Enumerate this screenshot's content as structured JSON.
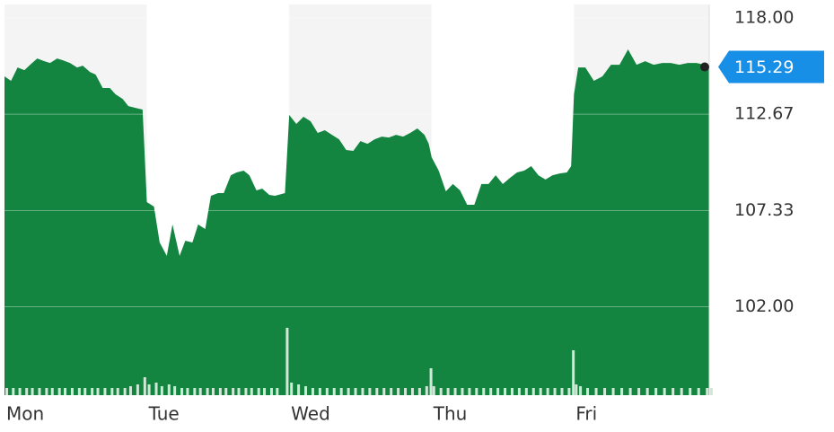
{
  "chart_data": {
    "type": "area",
    "color": "#148540",
    "volume_color": "#cfe9d6",
    "x": [
      0,
      0.046,
      0.092,
      0.14,
      0.18,
      0.23,
      0.28,
      0.32,
      0.37,
      0.41,
      0.46,
      0.51,
      0.55,
      0.6,
      0.64,
      0.69,
      0.74,
      0.78,
      0.83,
      0.87,
      0.92,
      0.97,
      1.0,
      1.05,
      1.09,
      1.14,
      1.18,
      1.23,
      1.27,
      1.32,
      1.36,
      1.41,
      1.45,
      1.5,
      1.54,
      1.59,
      1.63,
      1.68,
      1.72,
      1.77,
      1.81,
      1.86,
      1.9,
      1.97,
      2.0,
      2.05,
      2.1,
      2.15,
      2.2,
      2.25,
      2.3,
      2.35,
      2.4,
      2.45,
      2.5,
      2.55,
      2.6,
      2.65,
      2.7,
      2.75,
      2.8,
      2.85,
      2.9,
      2.95,
      2.98,
      3.0,
      3.05,
      3.1,
      3.15,
      3.2,
      3.25,
      3.3,
      3.35,
      3.4,
      3.45,
      3.5,
      3.55,
      3.6,
      3.65,
      3.7,
      3.75,
      3.8,
      3.85,
      3.9,
      3.95,
      3.98,
      4.0,
      4.03,
      4.08,
      4.14,
      4.2,
      4.26,
      4.32,
      4.38,
      4.44,
      4.5,
      4.56,
      4.62,
      4.68,
      4.74,
      4.8,
      4.86,
      4.92,
      4.95
    ],
    "values": [
      114.77,
      114.52,
      115.26,
      115.11,
      115.41,
      115.76,
      115.61,
      115.51,
      115.76,
      115.66,
      115.51,
      115.26,
      115.36,
      115.01,
      114.87,
      114.12,
      114.12,
      113.77,
      113.52,
      113.12,
      113.02,
      112.93,
      107.8,
      107.55,
      105.56,
      104.82,
      106.56,
      104.82,
      105.66,
      105.56,
      106.56,
      106.31,
      108.15,
      108.3,
      108.3,
      109.29,
      109.44,
      109.54,
      109.29,
      108.45,
      108.55,
      108.2,
      108.15,
      108.3,
      112.63,
      112.13,
      112.53,
      112.28,
      111.63,
      111.78,
      111.53,
      111.28,
      110.69,
      110.64,
      111.18,
      111.03,
      111.28,
      111.43,
      111.38,
      111.53,
      111.43,
      111.63,
      111.88,
      111.53,
      111.03,
      110.29,
      109.54,
      108.4,
      108.8,
      108.45,
      107.65,
      107.65,
      108.8,
      108.8,
      109.29,
      108.8,
      109.14,
      109.44,
      109.54,
      109.79,
      109.29,
      109.05,
      109.29,
      109.39,
      109.44,
      109.79,
      113.77,
      115.26,
      115.26,
      114.52,
      114.77,
      115.41,
      115.41,
      116.26,
      115.41,
      115.61,
      115.41,
      115.51,
      115.51,
      115.41,
      115.51,
      115.51,
      115.41,
      115.29
    ],
    "volume": [
      8,
      8,
      8,
      8,
      8,
      8,
      8,
      8,
      8,
      8,
      8,
      8,
      8,
      8,
      8,
      8,
      8,
      8,
      8,
      10,
      12,
      20,
      12,
      14,
      10,
      12,
      10,
      8,
      8,
      8,
      8,
      8,
      8,
      8,
      8,
      8,
      8,
      8,
      8,
      8,
      8,
      8,
      8,
      75,
      14,
      12,
      10,
      8,
      8,
      8,
      8,
      8,
      8,
      8,
      8,
      8,
      8,
      8,
      8,
      8,
      8,
      8,
      8,
      10,
      30,
      10,
      8,
      8,
      8,
      8,
      8,
      8,
      8,
      8,
      8,
      8,
      8,
      8,
      8,
      8,
      8,
      8,
      8,
      8,
      8,
      50,
      12,
      10,
      8,
      8,
      8,
      8,
      8,
      8,
      8,
      8,
      8,
      8,
      8,
      8,
      8,
      8,
      8,
      8
    ],
    "xlim": [
      0,
      4.95
    ],
    "xticks": [
      {
        "value": 0,
        "label": "Mon"
      },
      {
        "value": 1,
        "label": "Tue"
      },
      {
        "value": 2,
        "label": "Wed"
      },
      {
        "value": 3,
        "label": "Thu"
      },
      {
        "value": 4,
        "label": "Fri"
      }
    ],
    "ylim": [
      97.1,
      118.75
    ],
    "yticks": [
      {
        "value": 118,
        "label": "118.00"
      },
      {
        "value": 112.67,
        "label": "112.67"
      },
      {
        "value": 107.33,
        "label": "107.33"
      },
      {
        "value": 102,
        "label": "102.00"
      }
    ],
    "grid": true
  }
}
